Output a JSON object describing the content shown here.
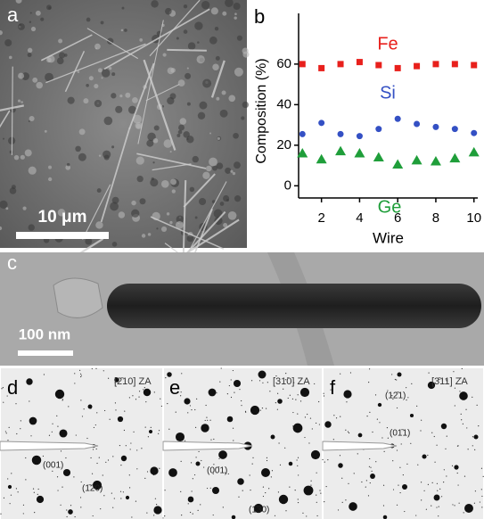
{
  "panels": {
    "a": {
      "label": "a",
      "scale_bar": "10 μm"
    },
    "c": {
      "label": "c",
      "scale_bar": "100 nm"
    },
    "d": {
      "label": "d",
      "zone_axis": "[2̄10] ZA",
      "spots": [
        "(001)",
        "(1̄20)"
      ]
    },
    "e": {
      "label": "e",
      "zone_axis": "[310] ZA",
      "spots": [
        "(001)",
        "(1̄30)"
      ]
    },
    "f": {
      "label": "f",
      "zone_axis": "[3̄11] ZA",
      "spots": [
        "(12̄1)",
        "(01̄1)"
      ]
    }
  },
  "chart_data": {
    "type": "scatter",
    "panel_label": "b",
    "x_label": "Wire",
    "y_label": "Composition (%)",
    "x": [
      1,
      2,
      3,
      4,
      5,
      6,
      7,
      8,
      9,
      10
    ],
    "series": [
      {
        "name": "Fe",
        "color": "#e8201c",
        "marker": "square",
        "values": [
          60,
          58,
          60,
          61,
          59.5,
          58,
          59,
          60,
          60,
          59.5
        ]
      },
      {
        "name": "Si",
        "color": "#3450c4",
        "marker": "circle",
        "values": [
          25.5,
          31,
          25.5,
          24.5,
          28,
          33,
          30.5,
          29,
          28,
          26
        ]
      },
      {
        "name": "Ge",
        "color": "#1f9e3a",
        "marker": "triangle",
        "values": [
          16,
          13,
          17,
          16,
          14,
          10.5,
          12.5,
          12,
          13.5,
          16.5
        ]
      }
    ],
    "xlim": [
      0.8,
      10.2
    ],
    "ylim": [
      -6,
      85
    ],
    "xticks": [
      2,
      4,
      6,
      8,
      10
    ],
    "yticks": [
      0,
      20,
      40,
      60
    ]
  }
}
